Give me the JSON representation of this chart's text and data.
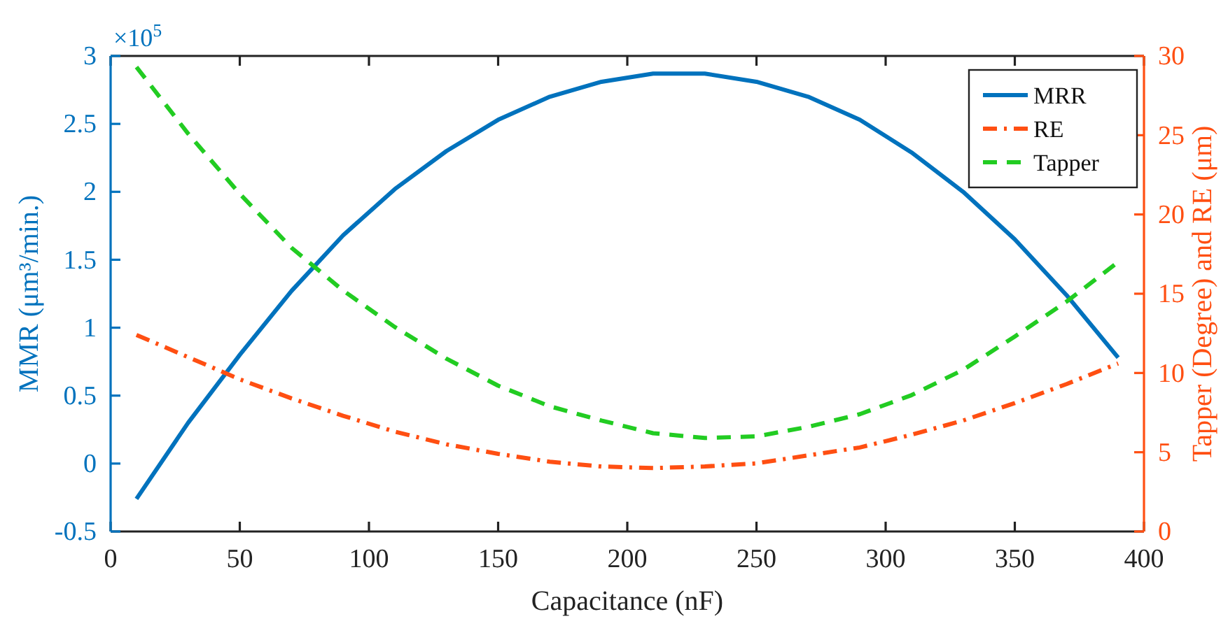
{
  "chart_data": {
    "type": "line",
    "xlabel": "Capacitance (nF)",
    "ylabel": "MMR (μm³/min.)",
    "y2label": "Tapper (Degree) and RE (μm)",
    "annotations": [
      "×10$^{5}$"
    ],
    "x": [
      10,
      30,
      50,
      70,
      90,
      110,
      130,
      150,
      170,
      190,
      210,
      230,
      250,
      270,
      290,
      310,
      330,
      350,
      370,
      390
    ],
    "xlim": [
      0,
      400
    ],
    "xticks": [
      0,
      50,
      100,
      150,
      200,
      250,
      300,
      350,
      400
    ],
    "ylim": [
      -0.5,
      3
    ],
    "yticks": [
      -0.5,
      0,
      0.5,
      1,
      1.5,
      2,
      2.5,
      3
    ],
    "y2lim": [
      0,
      30
    ],
    "y2ticks": [
      0,
      5,
      10,
      15,
      20,
      25,
      30
    ],
    "legend": "top right",
    "grid": false,
    "series": [
      {
        "name": "MRR",
        "color": "#0072bd",
        "line_style": "solid",
        "values": [
          -0.26,
          0.3,
          0.8,
          1.27,
          1.68,
          2.02,
          2.3,
          2.53,
          2.7,
          2.81,
          2.87,
          2.87,
          2.81,
          2.7,
          2.53,
          2.29,
          2.0,
          1.65,
          1.24,
          0.78
        ]
      },
      {
        "name": "RE",
        "color": "#ff4f12",
        "axis": "y2",
        "line_style": "dashdot",
        "values": [
          12.4,
          11.0,
          9.6,
          8.4,
          7.3,
          6.3,
          5.5,
          4.9,
          4.4,
          4.1,
          4.0,
          4.1,
          4.3,
          4.8,
          5.3,
          6.1,
          7.0,
          8.1,
          9.3,
          10.6
        ]
      },
      {
        "name": "Tapper",
        "color": "#22cc22",
        "axis": "y2",
        "line_style": "dashed",
        "values": [
          29.3,
          25.1,
          21.3,
          17.9,
          15.2,
          12.9,
          10.9,
          9.2,
          7.9,
          7.0,
          6.2,
          5.9,
          6.0,
          6.6,
          7.4,
          8.6,
          10.2,
          12.3,
          14.5,
          17.0
        ]
      }
    ]
  }
}
